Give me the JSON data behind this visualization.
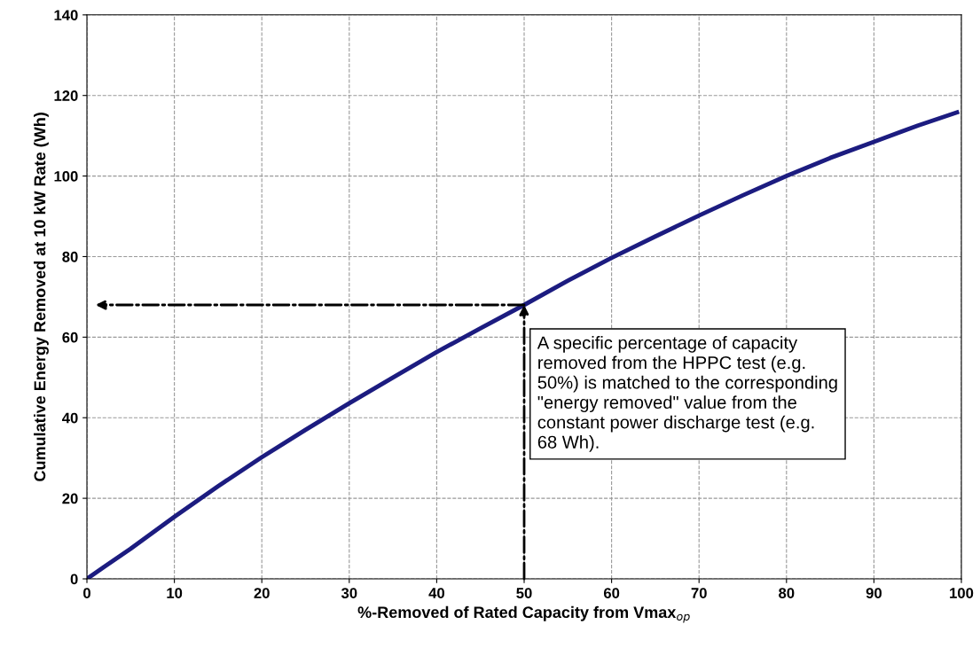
{
  "chart_data": {
    "type": "line",
    "xlabel": "%-Removed of Rated Capacity from Vmax$_{op}$",
    "ylabel": "Cumulative Energy Removed at 10 kW Rate (Wh)",
    "series": [
      {
        "color": "#1c1c80",
        "x": [
          0,
          2,
          5,
          10,
          15,
          20,
          25,
          30,
          35,
          40,
          45,
          50,
          55,
          60,
          65,
          70,
          75,
          80,
          85,
          90,
          95,
          99.5
        ],
        "values": [
          0,
          3,
          7.5,
          15.4,
          23,
          30.2,
          37,
          43.6,
          50,
          56.3,
          62.2,
          68,
          74,
          79.7,
          85,
          90.2,
          95.2,
          100,
          104.5,
          108.5,
          112.5,
          115.8
        ]
      }
    ],
    "annotations": [
      {
        "text": "A specific percentage of capacity\nremoved from the HPPC test (e.g.\n50%) is matched to the corresponding\n\"energy removed\" value from the\nconstant power discharge test (e.g.\n68 Wh).",
        "x": 50,
        "y": 68
      }
    ],
    "xlim": [
      0,
      100
    ],
    "xticks": [
      0,
      10,
      20,
      30,
      40,
      50,
      60,
      70,
      80,
      90,
      100
    ],
    "ylim": [
      0,
      140
    ],
    "yticks": [
      0,
      20,
      40,
      60,
      80,
      100,
      120,
      140
    ],
    "grid": true,
    "legend": false,
    "marker": "none",
    "line_style": "solid"
  }
}
